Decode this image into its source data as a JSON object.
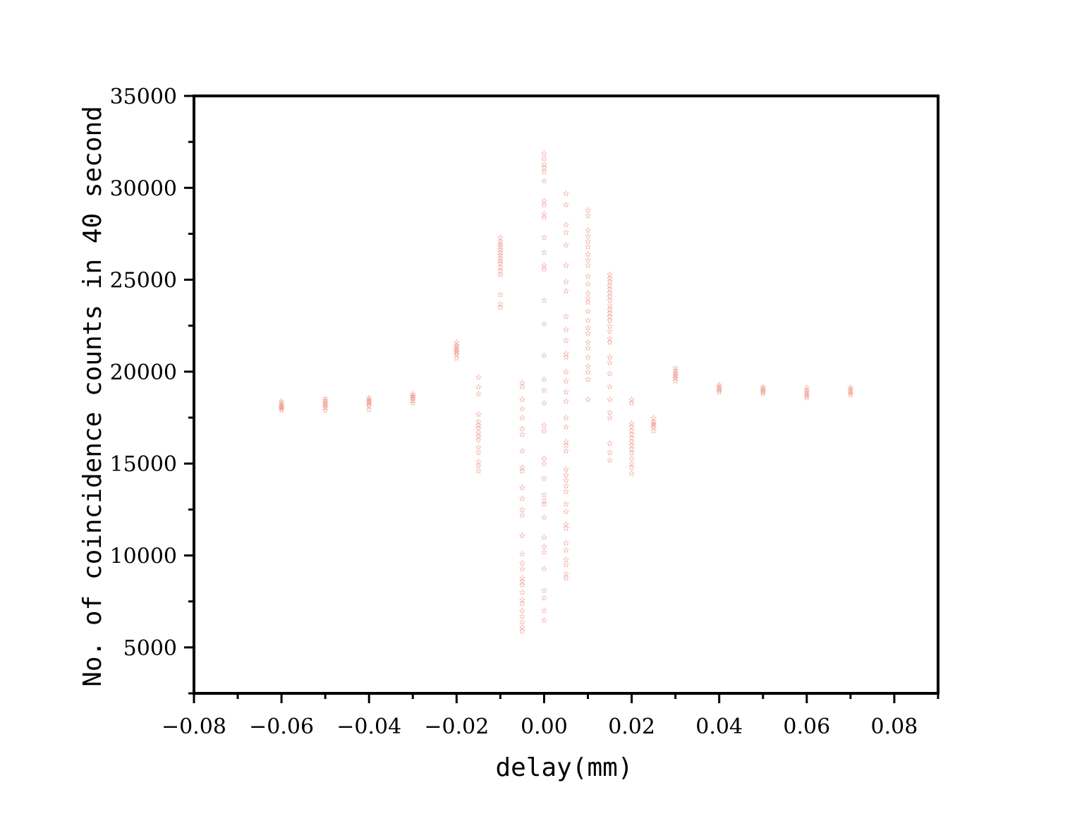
{
  "chart_data": {
    "type": "scatter",
    "title": "",
    "xlabel": "delay(mm)",
    "ylabel": "No. of coincidence counts in 40 second",
    "xlim": [
      -0.08,
      0.09
    ],
    "ylim": [
      2500,
      35000
    ],
    "xticks": [
      -0.08,
      -0.06,
      -0.04,
      -0.02,
      0.0,
      0.02,
      0.04,
      0.06,
      0.08
    ],
    "xtick_labels": [
      "−0.08",
      "−0.06",
      "−0.04",
      "−0.02",
      "0.00",
      "0.02",
      "0.04",
      "0.06",
      "0.08"
    ],
    "yticks": [
      5000,
      10000,
      15000,
      20000,
      25000,
      30000,
      35000
    ],
    "ytick_labels": [
      "5000",
      "10000",
      "15000",
      "20000",
      "25000",
      "30000",
      "35000"
    ],
    "grid": false,
    "marker": "star",
    "marker_color": "#e8604c",
    "series": [
      {
        "points": [
          [
            -0.06,
            18400
          ],
          [
            -0.06,
            18300
          ],
          [
            -0.06,
            18200
          ],
          [
            -0.06,
            18100
          ],
          [
            -0.06,
            18050
          ],
          [
            -0.06,
            18000
          ],
          [
            -0.06,
            17900
          ],
          [
            -0.05,
            18550
          ],
          [
            -0.05,
            18450
          ],
          [
            -0.05,
            18350
          ],
          [
            -0.05,
            18250
          ],
          [
            -0.05,
            18150
          ],
          [
            -0.05,
            18050
          ],
          [
            -0.05,
            17900
          ],
          [
            -0.04,
            18600
          ],
          [
            -0.04,
            18500
          ],
          [
            -0.04,
            18400
          ],
          [
            -0.04,
            18350
          ],
          [
            -0.04,
            18250
          ],
          [
            -0.04,
            18150
          ],
          [
            -0.04,
            17950
          ],
          [
            -0.03,
            18800
          ],
          [
            -0.03,
            18700
          ],
          [
            -0.03,
            18650
          ],
          [
            -0.03,
            18550
          ],
          [
            -0.03,
            18450
          ],
          [
            -0.03,
            18300
          ],
          [
            -0.02,
            21600
          ],
          [
            -0.02,
            21450
          ],
          [
            -0.02,
            21350
          ],
          [
            -0.02,
            21250
          ],
          [
            -0.02,
            21150
          ],
          [
            -0.02,
            21050
          ],
          [
            -0.02,
            20950
          ],
          [
            -0.02,
            20750
          ],
          [
            -0.015,
            19700
          ],
          [
            -0.015,
            19200
          ],
          [
            -0.015,
            18800
          ],
          [
            -0.015,
            17700
          ],
          [
            -0.015,
            17300
          ],
          [
            -0.015,
            17100
          ],
          [
            -0.015,
            16950
          ],
          [
            -0.015,
            16700
          ],
          [
            -0.015,
            16500
          ],
          [
            -0.015,
            16300
          ],
          [
            -0.015,
            15900
          ],
          [
            -0.015,
            15600
          ],
          [
            -0.015,
            15100
          ],
          [
            -0.015,
            14900
          ],
          [
            -0.015,
            14600
          ],
          [
            -0.01,
            27300
          ],
          [
            -0.01,
            27100
          ],
          [
            -0.01,
            26950
          ],
          [
            -0.01,
            26800
          ],
          [
            -0.01,
            26650
          ],
          [
            -0.01,
            26500
          ],
          [
            -0.01,
            26350
          ],
          [
            -0.01,
            26200
          ],
          [
            -0.01,
            26050
          ],
          [
            -0.01,
            25900
          ],
          [
            -0.01,
            25700
          ],
          [
            -0.01,
            25500
          ],
          [
            -0.01,
            25300
          ],
          [
            -0.01,
            24200
          ],
          [
            -0.01,
            23700
          ],
          [
            -0.01,
            23500
          ],
          [
            -0.005,
            19400
          ],
          [
            -0.005,
            19200
          ],
          [
            -0.005,
            18500
          ],
          [
            -0.005,
            18000
          ],
          [
            -0.005,
            17500
          ],
          [
            -0.005,
            16900
          ],
          [
            -0.005,
            16600
          ],
          [
            -0.005,
            15700
          ],
          [
            -0.005,
            14800
          ],
          [
            -0.005,
            14600
          ],
          [
            -0.005,
            13700
          ],
          [
            -0.005,
            13100
          ],
          [
            -0.005,
            12500
          ],
          [
            -0.005,
            12200
          ],
          [
            -0.005,
            11100
          ],
          [
            -0.005,
            10100
          ],
          [
            -0.005,
            9600
          ],
          [
            -0.005,
            9300
          ],
          [
            -0.005,
            8800
          ],
          [
            -0.005,
            8600
          ],
          [
            -0.005,
            8400
          ],
          [
            -0.005,
            8000
          ],
          [
            -0.005,
            7600
          ],
          [
            -0.005,
            7400
          ],
          [
            -0.005,
            7000
          ],
          [
            -0.005,
            6700
          ],
          [
            -0.005,
            6400
          ],
          [
            -0.005,
            6100
          ],
          [
            -0.005,
            5900
          ],
          [
            0.0,
            31900
          ],
          [
            0.0,
            31600
          ],
          [
            0.0,
            31300
          ],
          [
            0.0,
            31100
          ],
          [
            0.0,
            30900
          ],
          [
            0.0,
            30400
          ],
          [
            0.0,
            29300
          ],
          [
            0.0,
            29100
          ],
          [
            0.0,
            28600
          ],
          [
            0.0,
            28400
          ],
          [
            0.0,
            27300
          ],
          [
            0.0,
            26500
          ],
          [
            0.0,
            25800
          ],
          [
            0.0,
            25600
          ],
          [
            0.0,
            23900
          ],
          [
            0.0,
            22600
          ],
          [
            0.0,
            20900
          ],
          [
            0.0,
            19600
          ],
          [
            0.0,
            19000
          ],
          [
            0.0,
            18300
          ],
          [
            0.0,
            17100
          ],
          [
            0.0,
            16800
          ],
          [
            0.0,
            15300
          ],
          [
            0.0,
            15000
          ],
          [
            0.0,
            14200
          ],
          [
            0.0,
            13300
          ],
          [
            0.0,
            13000
          ],
          [
            0.0,
            12800
          ],
          [
            0.0,
            12100
          ],
          [
            0.0,
            11000
          ],
          [
            0.0,
            10500
          ],
          [
            0.0,
            10200
          ],
          [
            0.0,
            9300
          ],
          [
            0.0,
            8100
          ],
          [
            0.0,
            7700
          ],
          [
            0.0,
            7000
          ],
          [
            0.0,
            6500
          ],
          [
            0.005,
            29700
          ],
          [
            0.005,
            29100
          ],
          [
            0.005,
            28000
          ],
          [
            0.005,
            27600
          ],
          [
            0.005,
            26900
          ],
          [
            0.005,
            25800
          ],
          [
            0.005,
            24900
          ],
          [
            0.005,
            24400
          ],
          [
            0.005,
            23000
          ],
          [
            0.005,
            22300
          ],
          [
            0.005,
            21700
          ],
          [
            0.005,
            21000
          ],
          [
            0.005,
            20800
          ],
          [
            0.005,
            20000
          ],
          [
            0.005,
            19500
          ],
          [
            0.005,
            18900
          ],
          [
            0.005,
            18400
          ],
          [
            0.005,
            17500
          ],
          [
            0.005,
            17000
          ],
          [
            0.005,
            16200
          ],
          [
            0.005,
            16000
          ],
          [
            0.005,
            15700
          ],
          [
            0.005,
            14700
          ],
          [
            0.005,
            14400
          ],
          [
            0.005,
            14100
          ],
          [
            0.005,
            13800
          ],
          [
            0.005,
            13500
          ],
          [
            0.005,
            12800
          ],
          [
            0.005,
            12400
          ],
          [
            0.005,
            11700
          ],
          [
            0.005,
            11500
          ],
          [
            0.005,
            10700
          ],
          [
            0.005,
            10300
          ],
          [
            0.005,
            9800
          ],
          [
            0.005,
            9500
          ],
          [
            0.005,
            9000
          ],
          [
            0.005,
            8800
          ],
          [
            0.01,
            28800
          ],
          [
            0.01,
            28500
          ],
          [
            0.01,
            27700
          ],
          [
            0.01,
            27400
          ],
          [
            0.01,
            27100
          ],
          [
            0.01,
            26800
          ],
          [
            0.01,
            26400
          ],
          [
            0.01,
            26100
          ],
          [
            0.01,
            25800
          ],
          [
            0.01,
            25200
          ],
          [
            0.01,
            24800
          ],
          [
            0.01,
            24300
          ],
          [
            0.01,
            24000
          ],
          [
            0.01,
            23800
          ],
          [
            0.01,
            23300
          ],
          [
            0.01,
            22800
          ],
          [
            0.01,
            22400
          ],
          [
            0.01,
            22100
          ],
          [
            0.01,
            21600
          ],
          [
            0.01,
            21300
          ],
          [
            0.01,
            20800
          ],
          [
            0.01,
            20300
          ],
          [
            0.01,
            20000
          ],
          [
            0.01,
            19600
          ],
          [
            0.01,
            18500
          ],
          [
            0.015,
            25300
          ],
          [
            0.015,
            25100
          ],
          [
            0.015,
            24900
          ],
          [
            0.015,
            24700
          ],
          [
            0.015,
            24500
          ],
          [
            0.015,
            24300
          ],
          [
            0.015,
            24100
          ],
          [
            0.015,
            23900
          ],
          [
            0.015,
            23600
          ],
          [
            0.015,
            23400
          ],
          [
            0.015,
            23200
          ],
          [
            0.015,
            23000
          ],
          [
            0.015,
            22800
          ],
          [
            0.015,
            22500
          ],
          [
            0.015,
            22200
          ],
          [
            0.015,
            21800
          ],
          [
            0.015,
            21600
          ],
          [
            0.015,
            20800
          ],
          [
            0.015,
            20500
          ],
          [
            0.015,
            19900
          ],
          [
            0.015,
            19200
          ],
          [
            0.015,
            18500
          ],
          [
            0.015,
            17800
          ],
          [
            0.015,
            17500
          ],
          [
            0.015,
            16100
          ],
          [
            0.015,
            15600
          ],
          [
            0.015,
            15200
          ],
          [
            0.02,
            18500
          ],
          [
            0.02,
            18300
          ],
          [
            0.02,
            17200
          ],
          [
            0.02,
            17000
          ],
          [
            0.02,
            16800
          ],
          [
            0.02,
            16600
          ],
          [
            0.02,
            16400
          ],
          [
            0.02,
            16200
          ],
          [
            0.02,
            16000
          ],
          [
            0.02,
            15800
          ],
          [
            0.02,
            15600
          ],
          [
            0.02,
            15300
          ],
          [
            0.02,
            15000
          ],
          [
            0.02,
            14800
          ],
          [
            0.02,
            14500
          ],
          [
            0.025,
            17500
          ],
          [
            0.025,
            17300
          ],
          [
            0.025,
            17200
          ],
          [
            0.025,
            17100
          ],
          [
            0.025,
            17000
          ],
          [
            0.025,
            16800
          ],
          [
            0.03,
            20200
          ],
          [
            0.03,
            20050
          ],
          [
            0.03,
            19950
          ],
          [
            0.03,
            19850
          ],
          [
            0.03,
            19750
          ],
          [
            0.03,
            19650
          ],
          [
            0.03,
            19500
          ],
          [
            0.04,
            19300
          ],
          [
            0.04,
            19200
          ],
          [
            0.04,
            19100
          ],
          [
            0.04,
            19000
          ],
          [
            0.04,
            18900
          ],
          [
            0.05,
            19200
          ],
          [
            0.05,
            19100
          ],
          [
            0.05,
            19000
          ],
          [
            0.05,
            18900
          ],
          [
            0.05,
            18800
          ],
          [
            0.06,
            19150
          ],
          [
            0.06,
            19000
          ],
          [
            0.06,
            18900
          ],
          [
            0.06,
            18800
          ],
          [
            0.06,
            18700
          ],
          [
            0.06,
            18600
          ],
          [
            0.07,
            19150
          ],
          [
            0.07,
            19050
          ],
          [
            0.07,
            18950
          ],
          [
            0.07,
            18850
          ],
          [
            0.07,
            18750
          ]
        ]
      }
    ]
  }
}
